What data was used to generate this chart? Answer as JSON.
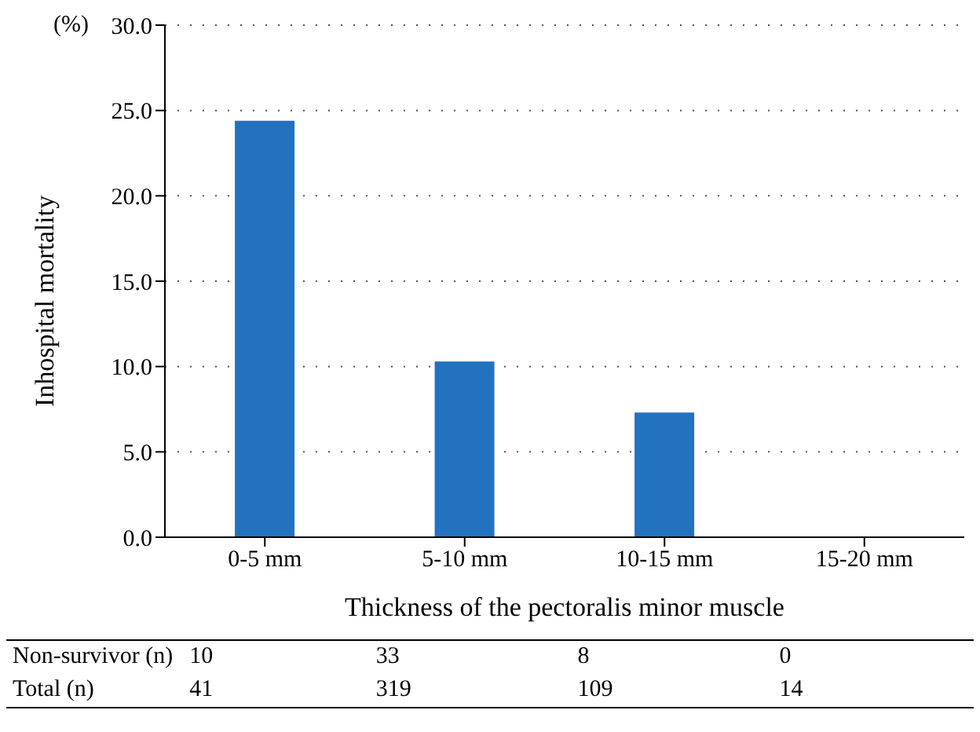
{
  "chart_data": {
    "type": "bar",
    "xlabel": "Thickness of the pectoralis minor muscle",
    "ylabel": "Inhospital mortality",
    "categories": [
      "0-5 mm",
      "5-10 mm",
      "10-15 mm",
      "15-20 mm"
    ],
    "values": [
      24.4,
      10.3,
      7.3,
      0
    ],
    "color": "#2372c0",
    "ylim": [
      0,
      30
    ],
    "yticks": [
      {
        "value": 0,
        "label": "0.0"
      },
      {
        "value": 5,
        "label": "5.0"
      },
      {
        "value": 10,
        "label": "10.0"
      },
      {
        "value": 15,
        "label": "15.0"
      },
      {
        "value": 20,
        "label": "20.0"
      },
      {
        "value": 25,
        "label": "25.0"
      },
      {
        "value": 30,
        "label": "30.0"
      }
    ],
    "grid": "y",
    "annotations": [
      "(%)",
      "Non-survivor (n)",
      "10",
      "33",
      "8",
      "0",
      "Total (n)",
      "41",
      "319",
      "109",
      "14"
    ]
  }
}
